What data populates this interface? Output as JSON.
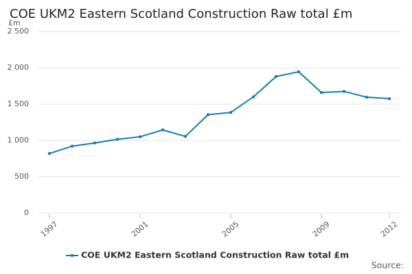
{
  "chart_data": {
    "type": "line",
    "title": "COE UKM2 Eastern Scotland Construction Raw total £m",
    "y_label": "£m",
    "source": "Source:",
    "x": [
      1997,
      1998,
      1999,
      2000,
      2001,
      2002,
      2003,
      2004,
      2005,
      2006,
      2007,
      2008,
      2009,
      2010,
      2011,
      2012
    ],
    "series": [
      {
        "name": "COE UKM2 Eastern Scotland Construction Raw total £m",
        "color": "#0f7ab8",
        "values": [
          820,
          920,
          965,
          1015,
          1050,
          1145,
          1055,
          1355,
          1385,
          1600,
          1880,
          1945,
          1660,
          1675,
          1595,
          1575
        ]
      }
    ],
    "xlim": [
      1997,
      2012
    ],
    "xticks": [
      1997,
      2001,
      2005,
      2009,
      2012
    ],
    "ylim": [
      0,
      2500
    ],
    "yticks": [
      0,
      500,
      {
        "value": 1000,
        "label": "1 000"
      },
      {
        "value": 1500,
        "label": "1 500"
      },
      {
        "value": 2000,
        "label": "2 000"
      },
      {
        "value": 2500,
        "label": "2 500"
      }
    ],
    "grid": true
  }
}
